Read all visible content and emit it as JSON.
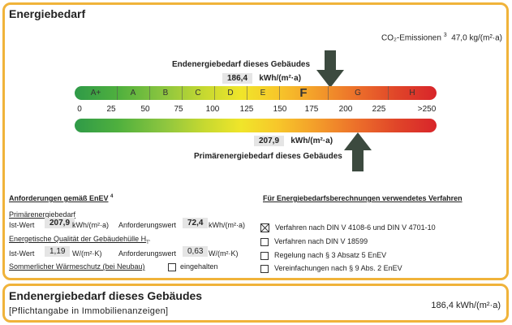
{
  "header": {
    "title": "Energiebedarf"
  },
  "co2": {
    "label": "CO₂-Emissionen",
    "sup": "3",
    "value": "47,0",
    "unit": "kg/(m²·a)"
  },
  "end_energy": {
    "label": "Endenergiebedarf dieses Gebäudes",
    "value": "186,4",
    "unit": "kWh/(m²·a)"
  },
  "scale": {
    "classes": [
      "A+",
      "A",
      "B",
      "C",
      "D",
      "E",
      "F",
      "G",
      "H"
    ],
    "ticks": [
      "0",
      "25",
      "50",
      "75",
      "100",
      "125",
      "150",
      "175",
      "200",
      "225",
      ">250"
    ]
  },
  "primary_energy": {
    "label": "Primärenergiebedarf dieses Gebäudes",
    "value": "207,9",
    "unit": "kWh/(m²·a)"
  },
  "requirements": {
    "heading": "Anforderungen gemäß EnEV",
    "heading_sup": "4",
    "primary_heading": "Primärenergiebedarf",
    "ist_label": "Ist-Wert",
    "ist_value": "207,9",
    "ist_unit": "kWh/(m²·a)",
    "req_label": "Anforderungswert",
    "req_value": "72,4",
    "req_unit": "kWh/(m²·a)",
    "quality_heading": "Energetische Qualität der Gebäudehülle H",
    "quality_sup": "T'",
    "ist2_label": "Ist-Wert",
    "ist2_value": "1,19",
    "ist2_unit": "W/(m²·K)",
    "req2_label": "Anforderungswert",
    "req2_value": "0,63",
    "req2_unit": "W/(m²·K)",
    "summer_label": "Sommerlicher Wärmeschutz (bei Neubau)",
    "summer_checkbox": "eingehalten"
  },
  "methods": {
    "heading": "Für Energiebedarfsberechnungen verwendetes Verfahren",
    "options": [
      {
        "label": "Verfahren nach DIN V 4108-6 und DIN V 4701-10",
        "checked": true
      },
      {
        "label": "Verfahren nach DIN V 18599",
        "checked": false
      },
      {
        "label": "Regelung nach § 3 Absatz 5 EnEV",
        "checked": false
      },
      {
        "label": "Vereinfachungen nach § 9 Abs. 2 EnEV",
        "checked": false
      }
    ]
  },
  "footer": {
    "title": "Endenergiebedarf dieses Gebäudes",
    "subtitle": "[Pflichtangabe in Immobilienanzeigen]",
    "value": "186,4 kWh/(m²·a)"
  },
  "colors": {
    "border": "#f0b33a",
    "arrow": "#3c4a3f"
  }
}
